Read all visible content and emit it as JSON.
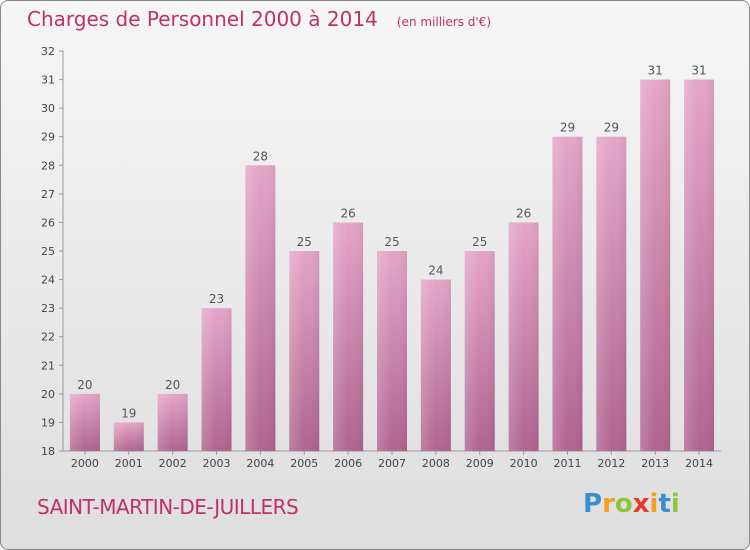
{
  "chart_data": {
    "type": "bar",
    "title": "Charges de Personnel 2000 à 2014",
    "unit": "(en milliers d'€)",
    "categories": [
      "2000",
      "2001",
      "2002",
      "2003",
      "2004",
      "2005",
      "2006",
      "2007",
      "2008",
      "2009",
      "2010",
      "2011",
      "2012",
      "2013",
      "2014"
    ],
    "values": [
      20,
      19,
      20,
      23,
      28,
      25,
      26,
      25,
      24,
      25,
      26,
      29,
      29,
      31,
      31
    ],
    "ylim": [
      18,
      32
    ],
    "yticks": [
      18,
      19,
      20,
      21,
      22,
      23,
      24,
      25,
      26,
      27,
      28,
      29,
      30,
      31,
      32
    ],
    "grid": false,
    "bar_color_top": "#e4a6c8",
    "bar_color_bottom": "#b0648e"
  },
  "commune": "SAINT-MARTIN-DE-JUILLERS",
  "logo": {
    "letters": [
      "P",
      "r",
      "o",
      "x",
      "i",
      "t",
      "i"
    ],
    "colors": [
      "#3a8fd0",
      "#f2a11f",
      "#8cc63f",
      "#e53b2c",
      "#f2a11f",
      "#3a8fd0",
      "#8cc63f"
    ]
  }
}
